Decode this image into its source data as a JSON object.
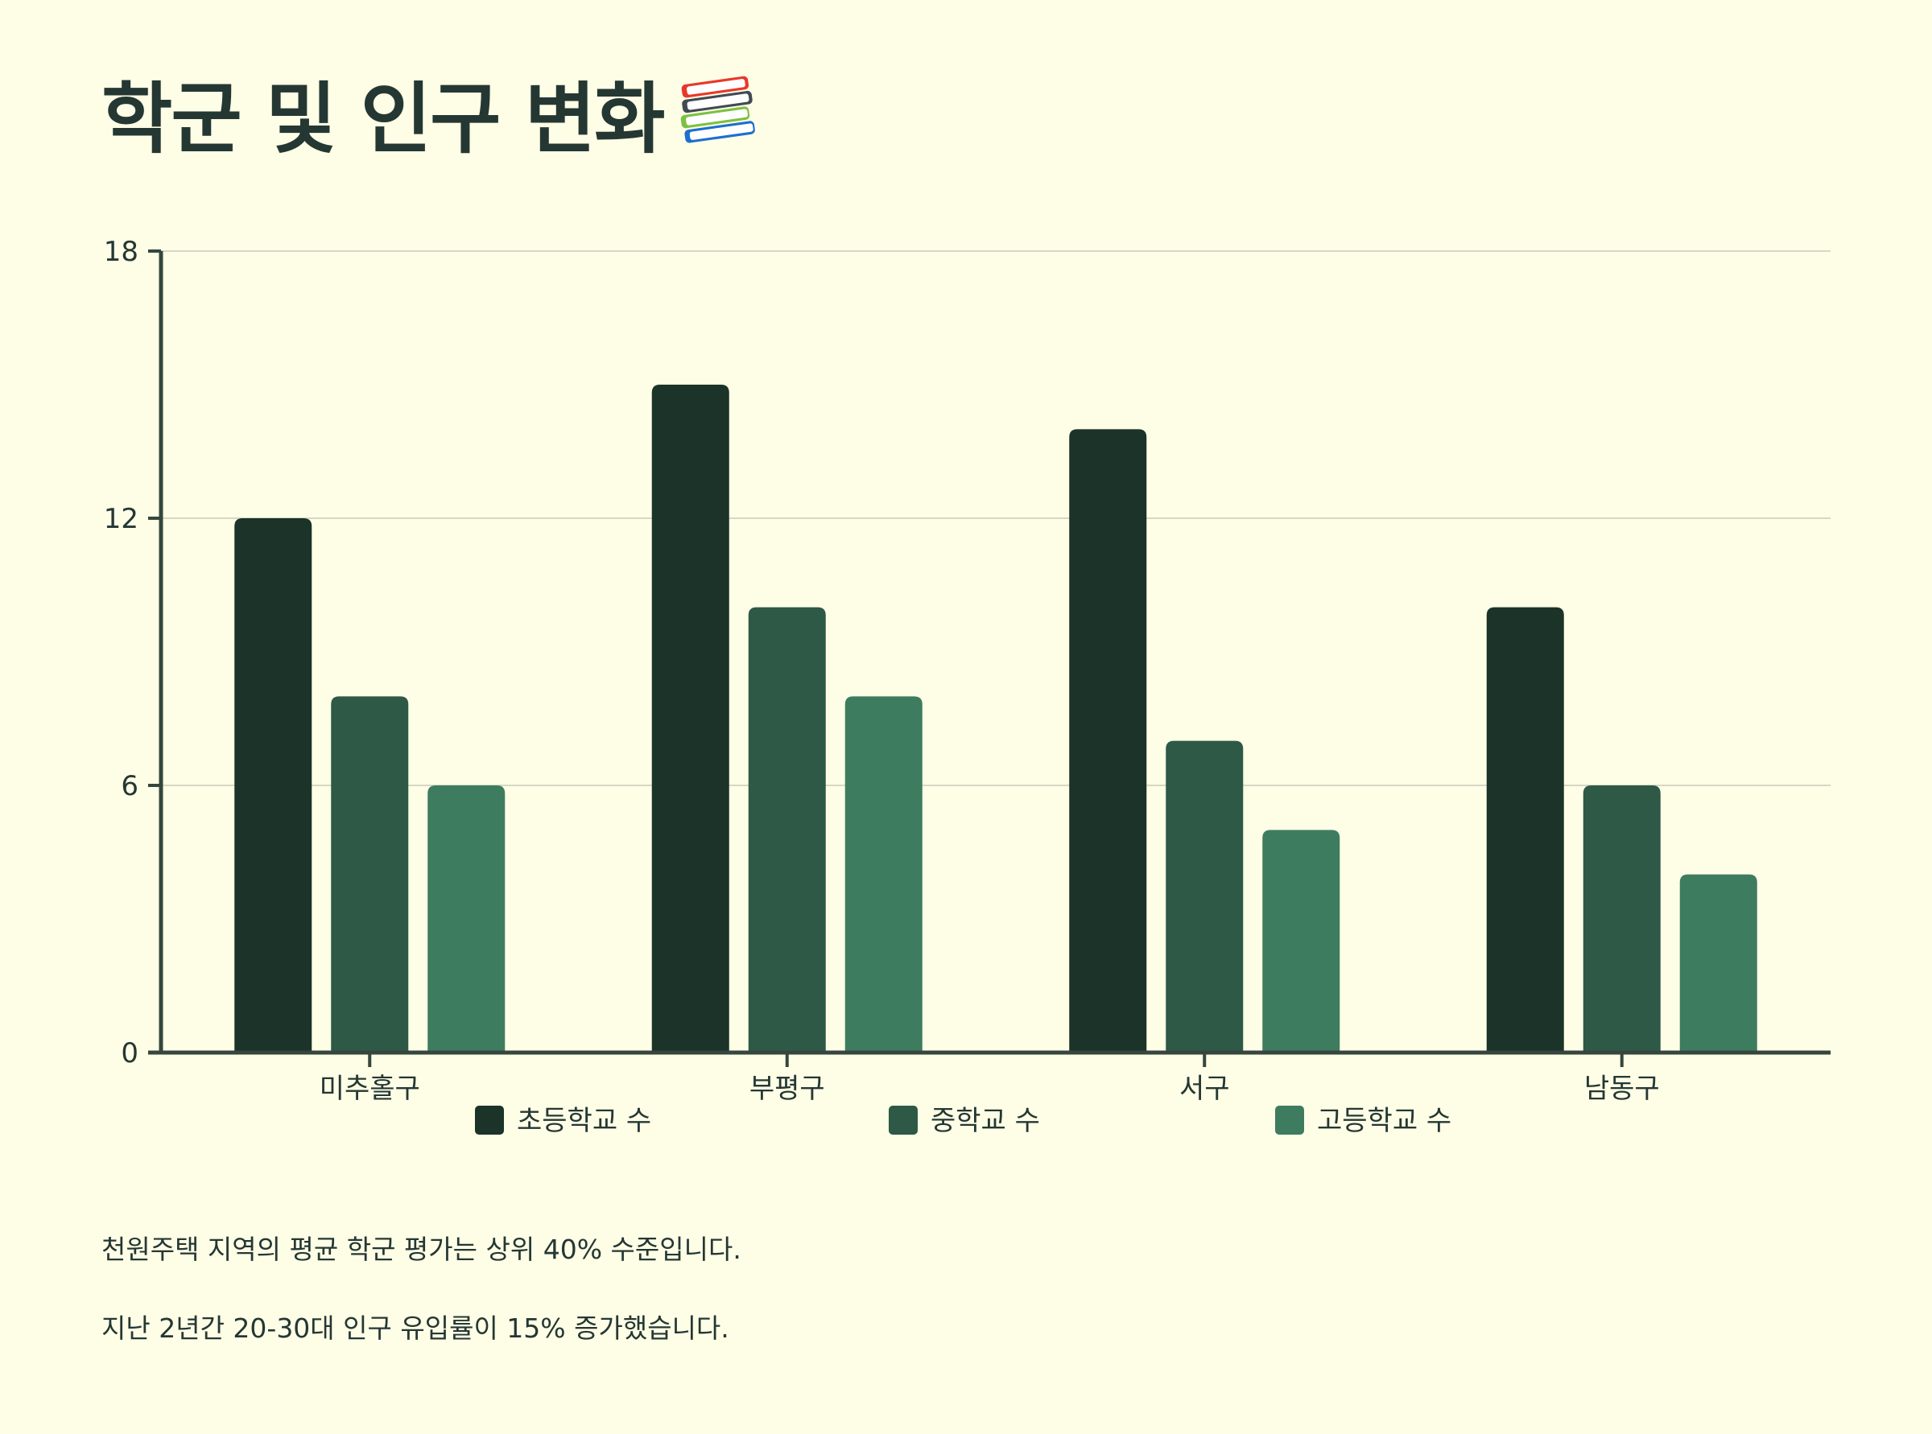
{
  "title": "학군 및 인구 변화",
  "title_icon": "books-icon",
  "colors": {
    "background": "#fefde6",
    "text": "#243733",
    "grid": "#d6d7c6",
    "axis": "#36463f",
    "series": [
      "#1b3328",
      "#2d5946",
      "#3e7c5f"
    ]
  },
  "chart_data": {
    "type": "bar",
    "categories": [
      "미추홀구",
      "부평구",
      "서구",
      "남동구"
    ],
    "series": [
      {
        "name": "초등학교 수",
        "values": [
          12,
          15,
          14,
          10
        ]
      },
      {
        "name": "중학교 수",
        "values": [
          8,
          10,
          7,
          6
        ]
      },
      {
        "name": "고등학교 수",
        "values": [
          6,
          8,
          5,
          4
        ]
      }
    ],
    "ylim": [
      0,
      18
    ],
    "yticks": [
      0,
      6,
      12,
      18
    ],
    "grid": true,
    "legend_position": "bottom"
  },
  "notes": [
    "천원주택 지역의 평균 학군 평가는 상위 40% 수준입니다.",
    "지난 2년간 20-30대 인구 유입률이 15% 증가했습니다."
  ]
}
